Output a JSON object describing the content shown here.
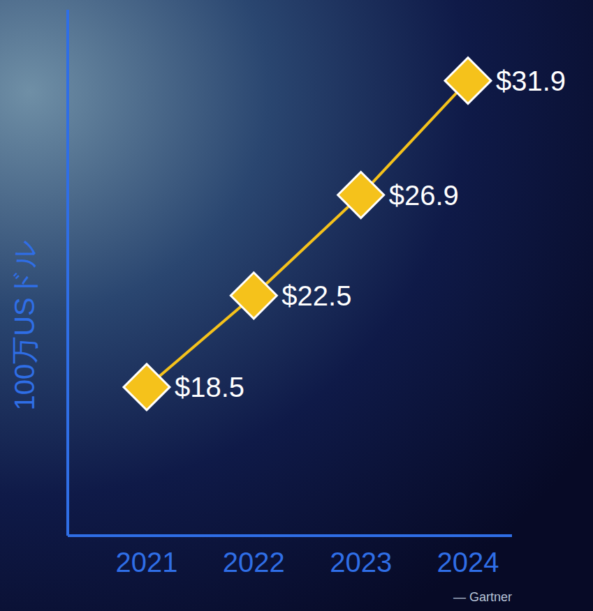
{
  "chart_data": {
    "type": "line",
    "ylabel": "100万USドル",
    "source": "— Gartner",
    "categories": [
      "2021",
      "2022",
      "2023",
      "2024"
    ],
    "values": [
      18.5,
      22.5,
      26.9,
      31.9
    ],
    "value_labels": [
      "$18.5",
      "$22.5",
      "$26.9",
      "$31.9"
    ],
    "color": "#f5c21b",
    "marker": "diamond",
    "ylim": [
      12,
      35
    ],
    "yticks": [
      20,
      30
    ],
    "grid": true,
    "data_labels": true,
    "tick_labels": "x"
  }
}
